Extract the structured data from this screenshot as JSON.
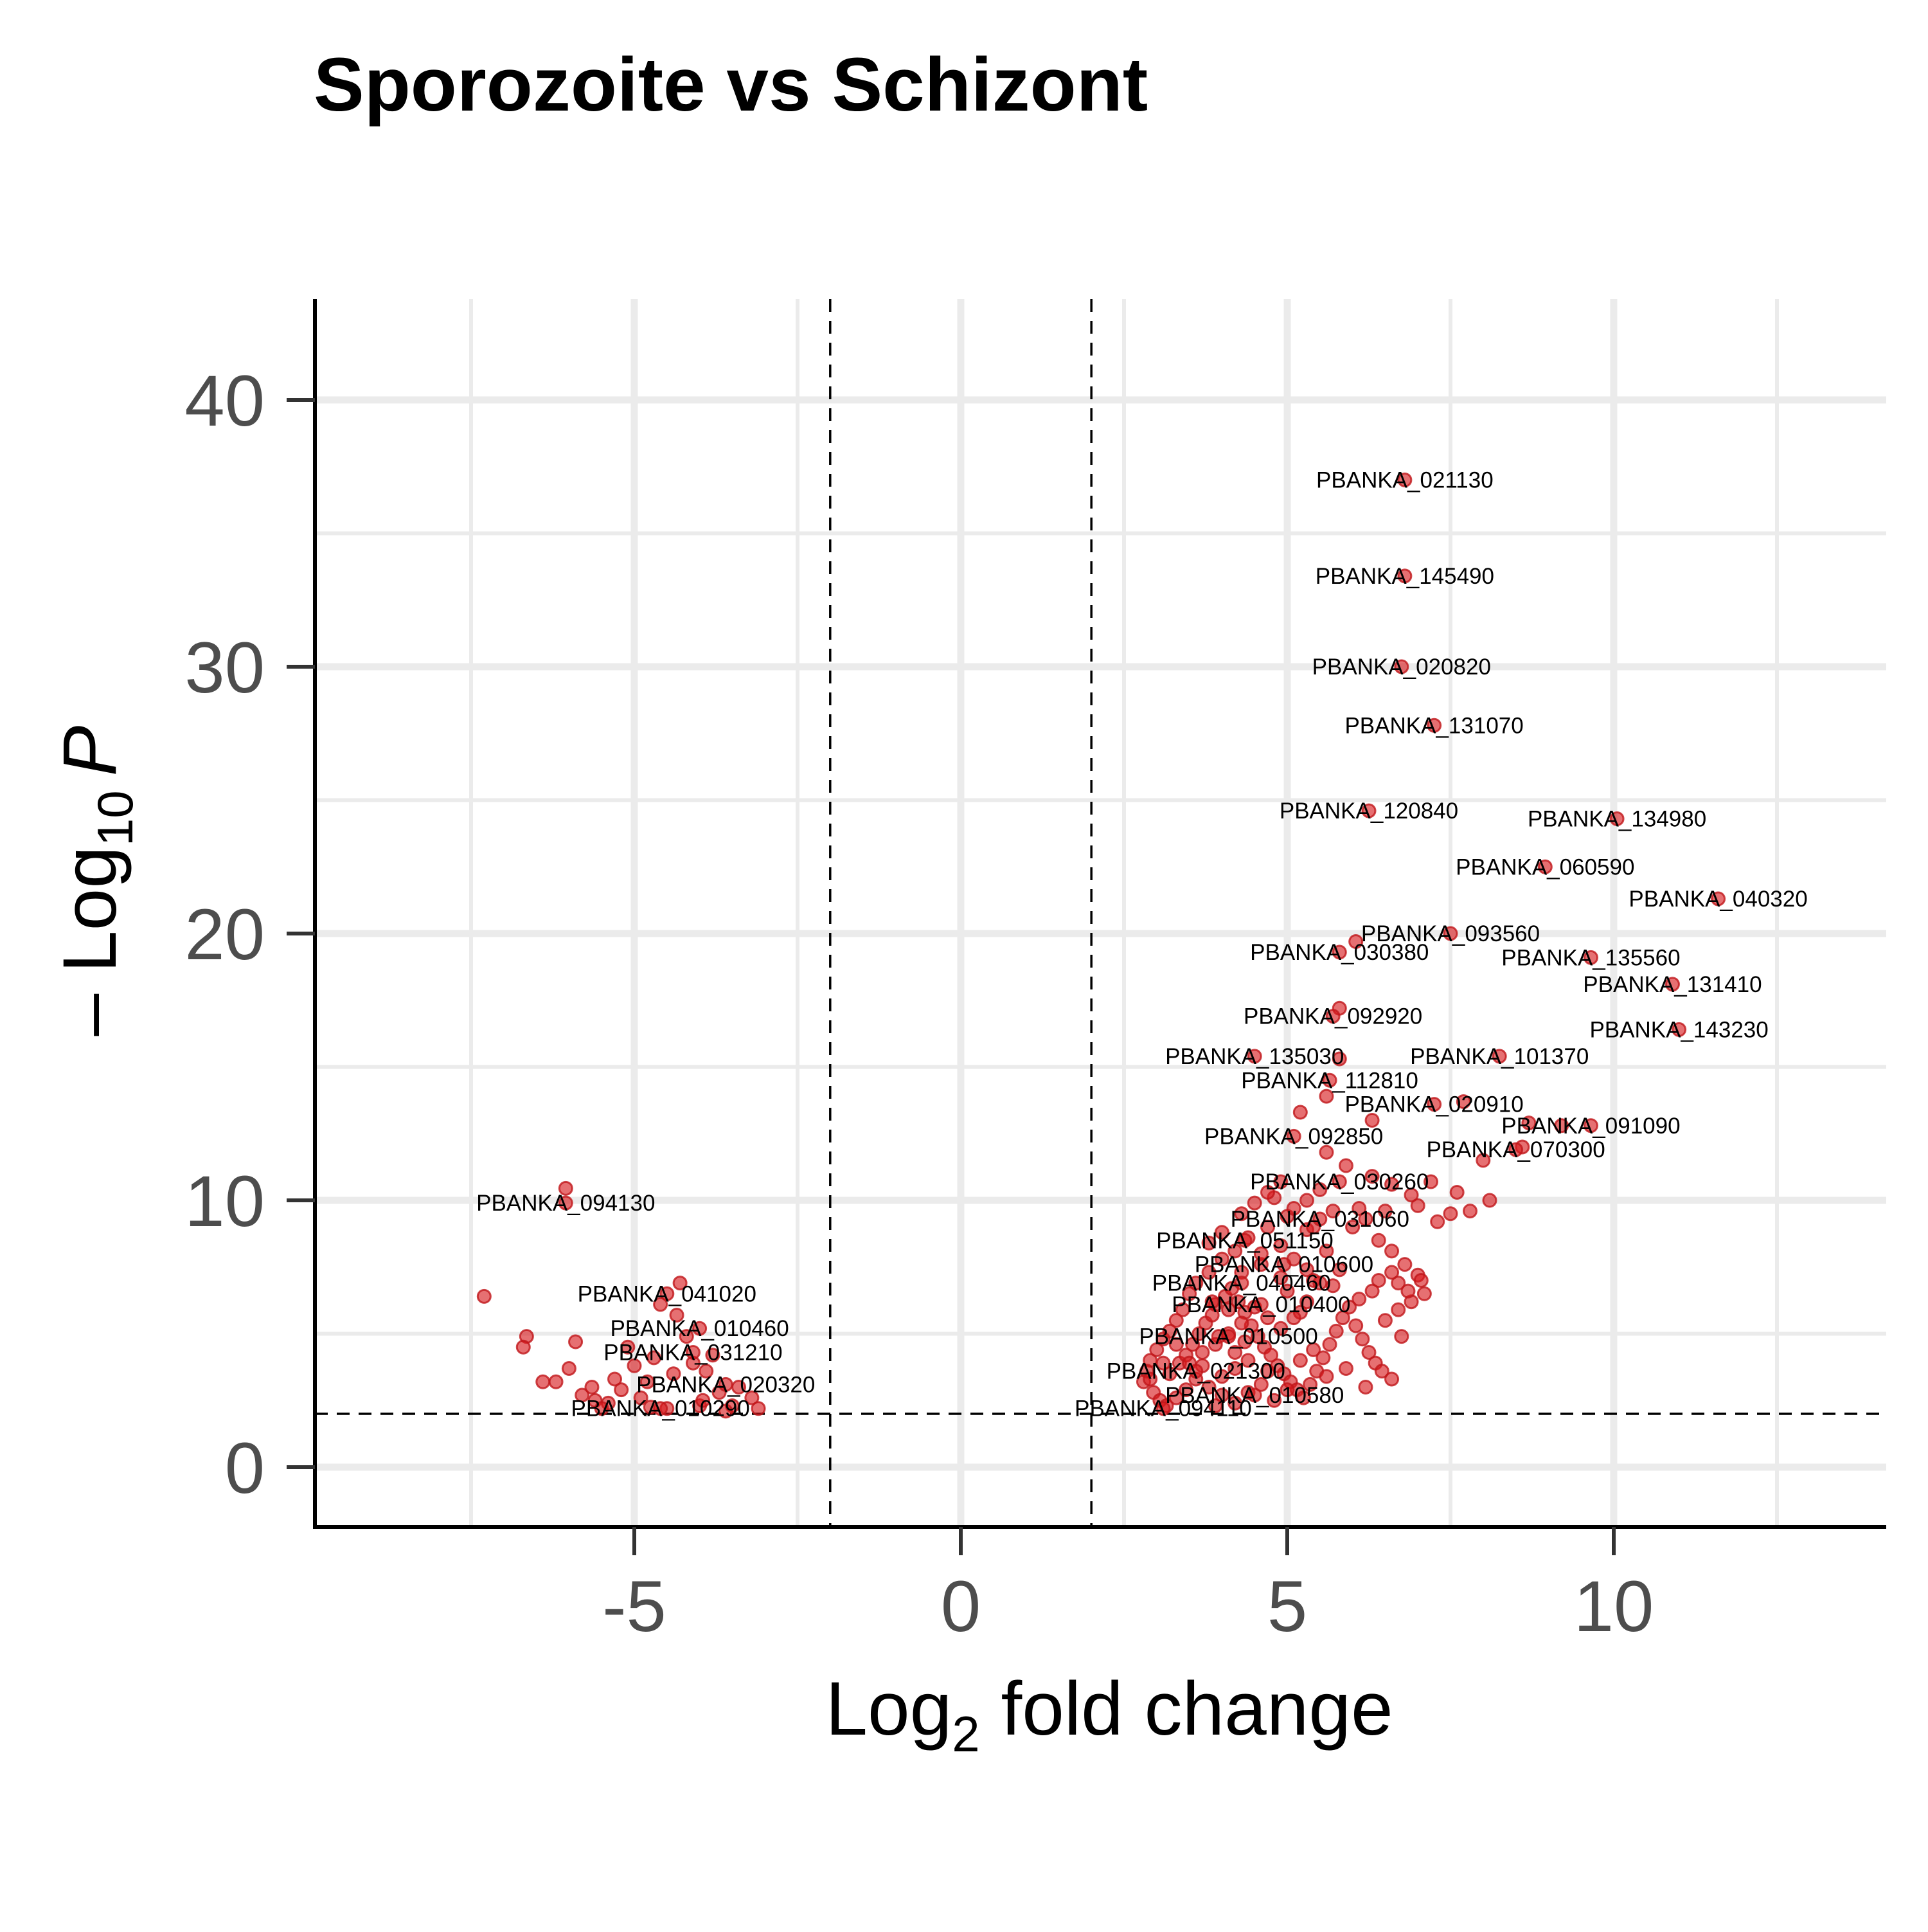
{
  "chart_data": {
    "type": "scatter",
    "title": "Sporozoite vs Schizont",
    "xlabel": {
      "base": "Log",
      "sub": "2",
      "rest": " fold change"
    },
    "ylabel": {
      "prefix": "– Log",
      "sub": "10",
      "var": "P"
    },
    "xlim": [
      -9.8,
      14.2
    ],
    "ylim": [
      -2.2,
      44
    ],
    "x_ticks": [
      -5,
      0,
      5,
      10
    ],
    "x_tick_labels": [
      "-5",
      "0",
      "5",
      "10"
    ],
    "y_ticks": [
      0,
      10,
      20,
      30,
      40
    ],
    "y_tick_labels": [
      "0",
      "10",
      "20",
      "30",
      "40"
    ],
    "x_minor_grid": [
      -7.5,
      -2.5,
      2.5,
      7.5,
      12.5
    ],
    "y_minor_grid": [
      5,
      15,
      25,
      35
    ],
    "grid": true,
    "legend": "none",
    "cutoffs": {
      "log2fc": [
        -2,
        2
      ],
      "neg_log10_p": 2
    },
    "point_color": "#d7191c",
    "labeled_points": [
      {
        "label": "PBANKA_021130",
        "x": 6.8,
        "y": 37.0
      },
      {
        "label": "PBANKA_145490",
        "x": 6.8,
        "y": 33.4
      },
      {
        "label": "PBANKA_020820",
        "x": 6.75,
        "y": 30.0
      },
      {
        "label": "PBANKA_131070",
        "x": 7.25,
        "y": 27.8
      },
      {
        "label": "PBANKA_120840",
        "x": 6.25,
        "y": 24.6
      },
      {
        "label": "PBANKA_134980",
        "x": 10.05,
        "y": 24.3
      },
      {
        "label": "PBANKA_060590",
        "x": 8.95,
        "y": 22.5
      },
      {
        "label": "PBANKA_040320",
        "x": 11.6,
        "y": 21.3
      },
      {
        "label": "PBANKA_093560",
        "x": 7.5,
        "y": 20.0
      },
      {
        "label": "PBANKA_030380",
        "x": 5.8,
        "y": 19.3
      },
      {
        "label": "PBANKA_135560",
        "x": 9.65,
        "y": 19.1
      },
      {
        "label": "PBANKA_131410",
        "x": 10.9,
        "y": 18.1
      },
      {
        "label": "PBANKA_092920",
        "x": 5.7,
        "y": 16.9
      },
      {
        "label": "PBANKA_143230",
        "x": 11.0,
        "y": 16.4
      },
      {
        "label": "PBANKA_135030",
        "x": 4.5,
        "y": 15.4
      },
      {
        "label": "PBANKA_101370",
        "x": 8.25,
        "y": 15.4
      },
      {
        "label": "PBANKA_112810",
        "x": 5.65,
        "y": 14.5
      },
      {
        "label": "PBANKA_020910",
        "x": 7.25,
        "y": 13.6
      },
      {
        "label": "PBANKA_091090",
        "x": 9.65,
        "y": 12.8
      },
      {
        "label": "PBANKA_092850",
        "x": 5.1,
        "y": 12.4
      },
      {
        "label": "PBANKA_070300",
        "x": 8.5,
        "y": 11.9
      },
      {
        "label": "PBANKA_030260",
        "x": 5.8,
        "y": 10.7
      },
      {
        "label": "PBANKA_094130",
        "x": -6.05,
        "y": 9.9
      },
      {
        "label": "PBANKA_031060",
        "x": 5.5,
        "y": 9.3
      },
      {
        "label": "PBANKA_051150",
        "x": 4.35,
        "y": 8.5
      },
      {
        "label": "PBANKA_010600",
        "x": 4.95,
        "y": 7.6
      },
      {
        "label": "PBANKA_040460",
        "x": 4.3,
        "y": 6.9
      },
      {
        "label": "PBANKA_041020",
        "x": -4.5,
        "y": 6.5
      },
      {
        "label": "PBANKA_010400",
        "x": 4.6,
        "y": 6.1
      },
      {
        "label": "PBANKA_010460",
        "x": -4.0,
        "y": 5.2
      },
      {
        "label": "PBANKA_010500",
        "x": 4.1,
        "y": 4.9
      },
      {
        "label": "PBANKA_031210",
        "x": -4.1,
        "y": 4.3
      },
      {
        "label": "PBANKA_021300",
        "x": 3.6,
        "y": 3.6
      },
      {
        "label": "PBANKA_020320",
        "x": -3.6,
        "y": 3.1
      },
      {
        "label": "PBANKA_010580",
        "x": 4.5,
        "y": 2.7
      },
      {
        "label": "PBANKA_010290",
        "x": -4.6,
        "y": 2.2
      },
      {
        "label": "PBANKA_094110",
        "x": 3.1,
        "y": 2.2
      }
    ],
    "extra_points": [
      [
        -6.05,
        10.45
      ],
      [
        -7.3,
        6.4
      ],
      [
        -6.65,
        4.9
      ],
      [
        -6.7,
        4.5
      ],
      [
        -6.4,
        3.2
      ],
      [
        -6.2,
        3.2
      ],
      [
        -5.9,
        4.7
      ],
      [
        -6.0,
        3.7
      ],
      [
        -5.8,
        2.7
      ],
      [
        -5.6,
        2.5
      ],
      [
        -5.4,
        2.4
      ],
      [
        -5.2,
        2.9
      ],
      [
        -5.1,
        4.5
      ],
      [
        -5.0,
        3.8
      ],
      [
        -4.9,
        2.6
      ],
      [
        -4.8,
        3.2
      ],
      [
        -4.7,
        4.1
      ],
      [
        -4.6,
        6.1
      ],
      [
        -4.3,
        6.9
      ],
      [
        -4.35,
        5.7
      ],
      [
        -4.2,
        4.9
      ],
      [
        -4.1,
        3.9
      ],
      [
        -4.0,
        2.3
      ],
      [
        -3.9,
        3.6
      ],
      [
        -3.8,
        4.2
      ],
      [
        -3.7,
        2.8
      ],
      [
        -3.5,
        2.3
      ],
      [
        -3.4,
        3.0
      ],
      [
        -3.2,
        2.6
      ],
      [
        -3.1,
        2.2
      ],
      [
        -5.5,
        2.2
      ],
      [
        -4.5,
        2.2
      ],
      [
        -3.6,
        2.1
      ],
      [
        -5.3,
        3.3
      ],
      [
        -4.4,
        3.5
      ],
      [
        -3.95,
        2.5
      ],
      [
        -4.75,
        2.25
      ],
      [
        -5.65,
        3.0
      ],
      [
        7.8,
        9.6
      ],
      [
        8.1,
        10.0
      ],
      [
        7.6,
        10.3
      ],
      [
        7.2,
        10.7
      ],
      [
        6.9,
        10.2
      ],
      [
        6.5,
        9.6
      ],
      [
        6.2,
        9.3
      ],
      [
        6.0,
        9.0
      ],
      [
        6.6,
        8.1
      ],
      [
        6.8,
        7.6
      ],
      [
        7.0,
        7.2
      ],
      [
        6.7,
        6.9
      ],
      [
        6.4,
        7.0
      ],
      [
        6.3,
        6.6
      ],
      [
        6.1,
        6.3
      ],
      [
        5.8,
        7.4
      ],
      [
        5.6,
        8.1
      ],
      [
        5.3,
        8.9
      ],
      [
        5.0,
        9.4
      ],
      [
        4.8,
        10.1
      ],
      [
        5.5,
        10.4
      ],
      [
        4.7,
        9.0
      ],
      [
        4.4,
        8.6
      ],
      [
        4.2,
        8.1
      ],
      [
        4.0,
        7.8
      ],
      [
        3.8,
        7.3
      ],
      [
        3.6,
        6.9
      ],
      [
        3.5,
        6.5
      ],
      [
        3.4,
        5.9
      ],
      [
        3.3,
        5.5
      ],
      [
        3.2,
        5.1
      ],
      [
        3.1,
        4.8
      ],
      [
        3.0,
        4.4
      ],
      [
        2.9,
        4.0
      ],
      [
        2.85,
        3.6
      ],
      [
        2.8,
        3.2
      ],
      [
        2.95,
        2.8
      ],
      [
        3.05,
        2.5
      ],
      [
        3.2,
        3.5
      ],
      [
        3.35,
        3.9
      ],
      [
        3.45,
        4.2
      ],
      [
        3.55,
        4.6
      ],
      [
        3.65,
        5.0
      ],
      [
        3.75,
        5.4
      ],
      [
        3.85,
        5.7
      ],
      [
        3.9,
        6.1
      ],
      [
        4.05,
        6.4
      ],
      [
        4.15,
        6.7
      ],
      [
        4.25,
        6.2
      ],
      [
        4.35,
        5.8
      ],
      [
        4.45,
        5.3
      ],
      [
        4.55,
        4.9
      ],
      [
        4.65,
        4.5
      ],
      [
        4.75,
        4.2
      ],
      [
        4.85,
        3.8
      ],
      [
        4.95,
        3.5
      ],
      [
        5.05,
        3.2
      ],
      [
        5.15,
        2.9
      ],
      [
        5.25,
        2.6
      ],
      [
        5.35,
        3.1
      ],
      [
        5.45,
        3.6
      ],
      [
        5.55,
        4.1
      ],
      [
        5.65,
        4.6
      ],
      [
        5.75,
        5.1
      ],
      [
        5.85,
        5.6
      ],
      [
        5.95,
        6.0
      ],
      [
        6.05,
        5.3
      ],
      [
        6.15,
        4.8
      ],
      [
        6.25,
        4.3
      ],
      [
        6.35,
        3.9
      ],
      [
        6.45,
        3.6
      ],
      [
        6.6,
        3.3
      ],
      [
        6.75,
        4.9
      ],
      [
        6.9,
        6.2
      ],
      [
        7.1,
        6.5
      ],
      [
        5.2,
        5.8
      ],
      [
        5.0,
        6.6
      ],
      [
        4.9,
        7.1
      ],
      [
        5.4,
        7.0
      ],
      [
        5.7,
        6.8
      ],
      [
        4.6,
        7.6
      ],
      [
        4.3,
        7.3
      ],
      [
        4.1,
        5.9
      ],
      [
        3.95,
        4.9
      ],
      [
        3.7,
        3.8
      ],
      [
        3.6,
        3.3
      ],
      [
        3.45,
        2.9
      ],
      [
        3.3,
        2.6
      ],
      [
        3.15,
        2.3
      ],
      [
        4.2,
        2.4
      ],
      [
        4.4,
        2.8
      ],
      [
        4.6,
        3.1
      ],
      [
        4.8,
        2.5
      ],
      [
        5.0,
        2.9
      ],
      [
        5.6,
        3.4
      ],
      [
        5.9,
        3.7
      ],
      [
        6.2,
        3.0
      ],
      [
        6.5,
        5.5
      ],
      [
        6.7,
        5.9
      ],
      [
        7.3,
        9.2
      ],
      [
        7.5,
        9.5
      ],
      [
        7.0,
        9.8
      ],
      [
        6.6,
        10.6
      ],
      [
        6.3,
        10.9
      ],
      [
        5.9,
        11.3
      ],
      [
        5.6,
        11.8
      ],
      [
        6.3,
        13.0
      ],
      [
        7.7,
        13.7
      ],
      [
        8.6,
        12.0
      ],
      [
        8.7,
        12.9
      ],
      [
        9.2,
        12.8
      ],
      [
        8.0,
        11.5
      ],
      [
        5.2,
        13.3
      ],
      [
        5.6,
        13.9
      ],
      [
        5.8,
        15.3
      ],
      [
        5.8,
        17.2
      ],
      [
        6.05,
        19.7
      ],
      [
        4.6,
        8.0
      ],
      [
        4.9,
        8.3
      ],
      [
        5.1,
        7.8
      ],
      [
        5.3,
        7.4
      ],
      [
        5.5,
        6.9
      ],
      [
        5.3,
        6.2
      ],
      [
        5.1,
        5.6
      ],
      [
        4.9,
        5.2
      ],
      [
        4.7,
        5.6
      ],
      [
        4.5,
        6.0
      ],
      [
        4.3,
        5.4
      ],
      [
        4.1,
        5.0
      ],
      [
        3.9,
        4.6
      ],
      [
        3.7,
        4.3
      ],
      [
        3.5,
        3.9
      ],
      [
        3.8,
        3.0
      ],
      [
        4.0,
        3.4
      ],
      [
        4.2,
        3.7
      ],
      [
        4.4,
        4.0
      ],
      [
        4.0,
        2.7
      ],
      [
        3.9,
        2.3
      ],
      [
        4.7,
        3.6
      ],
      [
        5.2,
        4.0
      ],
      [
        5.4,
        4.4
      ],
      [
        3.3,
        4.6
      ],
      [
        3.1,
        3.9
      ],
      [
        2.9,
        3.3
      ],
      [
        4.0,
        8.8
      ],
      [
        3.8,
        8.4
      ],
      [
        4.3,
        9.5
      ],
      [
        4.5,
        9.9
      ],
      [
        4.7,
        10.3
      ],
      [
        4.9,
        10.7
      ],
      [
        5.3,
        10.0
      ],
      [
        5.1,
        9.7
      ],
      [
        5.4,
        9.0
      ],
      [
        5.7,
        9.6
      ],
      [
        6.1,
        9.7
      ],
      [
        6.4,
        8.5
      ],
      [
        6.6,
        7.3
      ],
      [
        6.85,
        6.6
      ],
      [
        7.05,
        7.0
      ],
      [
        4.2,
        4.3
      ],
      [
        4.35,
        4.7
      ],
      [
        3.85,
        6.2
      ]
    ]
  }
}
